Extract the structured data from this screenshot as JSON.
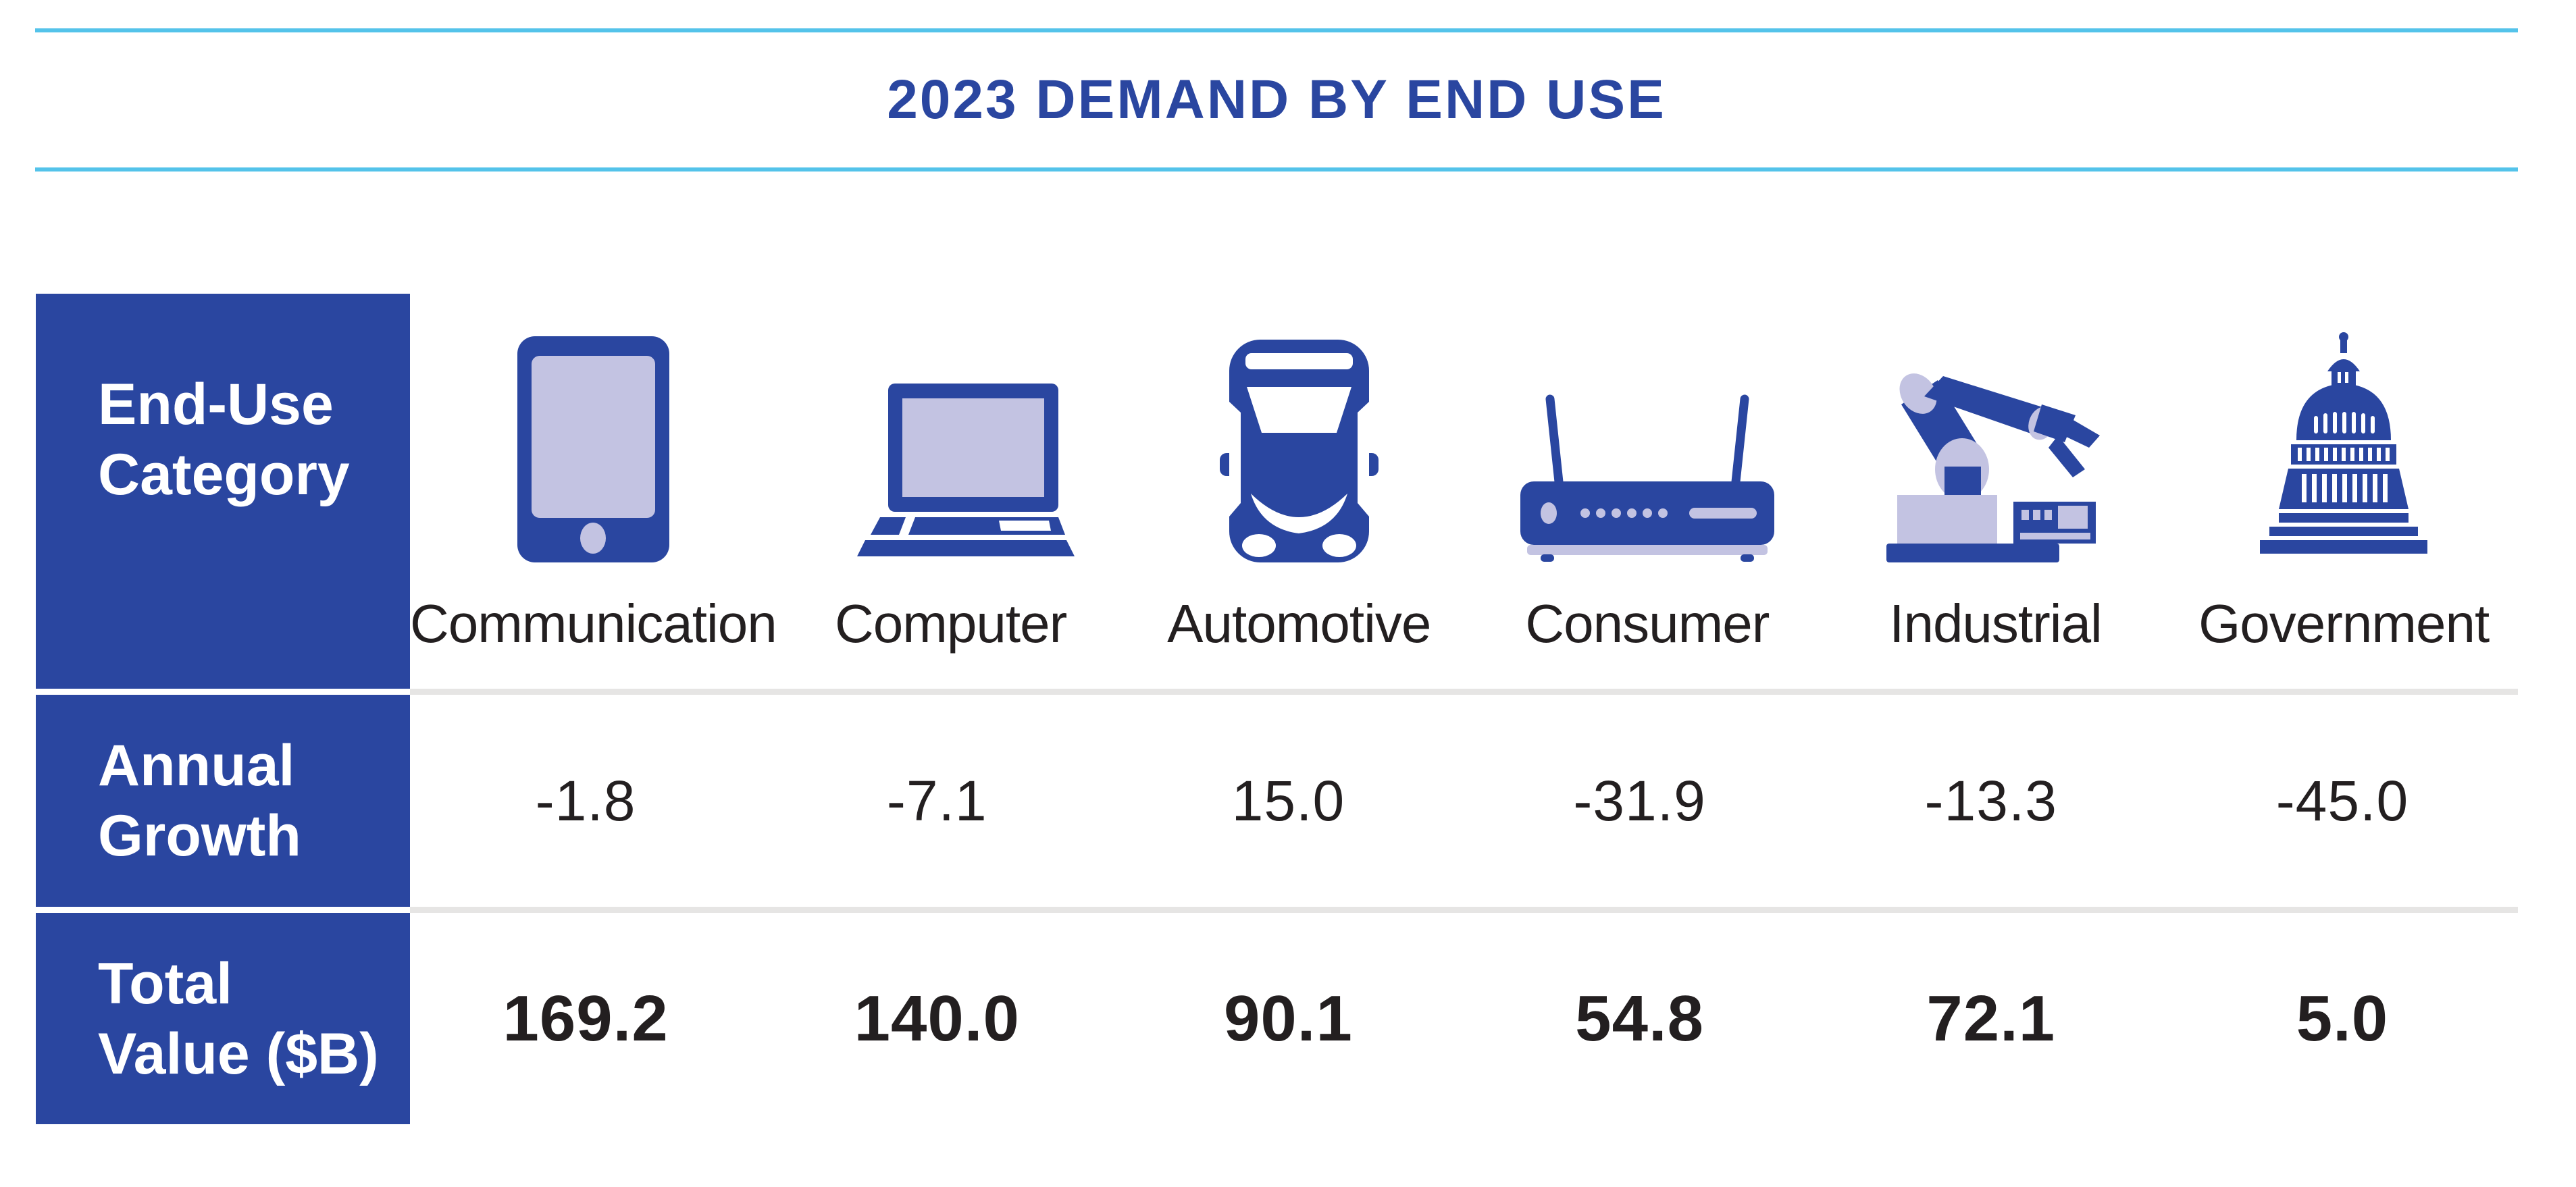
{
  "title": "2023 DEMAND BY END USE",
  "colors": {
    "blue": "#2a46a0",
    "lavender": "#c3c3e2",
    "cyan": "#54c3ea",
    "text_dark": "#231f20",
    "separator": "#e6e5e4"
  },
  "row_headers": {
    "category": [
      "End-Use",
      "Category"
    ],
    "growth": [
      "Annual",
      "Growth"
    ],
    "value": [
      "Total",
      "Value ($B)"
    ]
  },
  "columns": [
    {
      "label": "Communication",
      "icon": "smartphone-icon",
      "annual_growth": "-1.8",
      "total_value": "169.2"
    },
    {
      "label": "Computer",
      "icon": "laptop-icon",
      "annual_growth": "-7.1",
      "total_value": "140.0"
    },
    {
      "label": "Automotive",
      "icon": "car-icon",
      "annual_growth": "15.0",
      "total_value": "90.1"
    },
    {
      "label": "Consumer",
      "icon": "router-icon",
      "annual_growth": "-31.9",
      "total_value": "54.8"
    },
    {
      "label": "Industrial",
      "icon": "robot-arm-icon",
      "annual_growth": "-13.3",
      "total_value": "72.1"
    },
    {
      "label": "Government",
      "icon": "capitol-icon",
      "annual_growth": "-45.0",
      "total_value": "5.0"
    }
  ],
  "chart_data": {
    "type": "table",
    "title": "2023 DEMAND BY END USE",
    "categories": [
      "Communication",
      "Computer",
      "Automotive",
      "Consumer",
      "Industrial",
      "Government"
    ],
    "series": [
      {
        "name": "Annual Growth",
        "values": [
          -1.8,
          -7.1,
          15.0,
          -31.9,
          -13.3,
          -45.0
        ]
      },
      {
        "name": "Total Value ($B)",
        "values": [
          169.2,
          140.0,
          90.1,
          54.8,
          72.1,
          5.0
        ]
      }
    ],
    "legend_position": "none",
    "grid": false
  }
}
